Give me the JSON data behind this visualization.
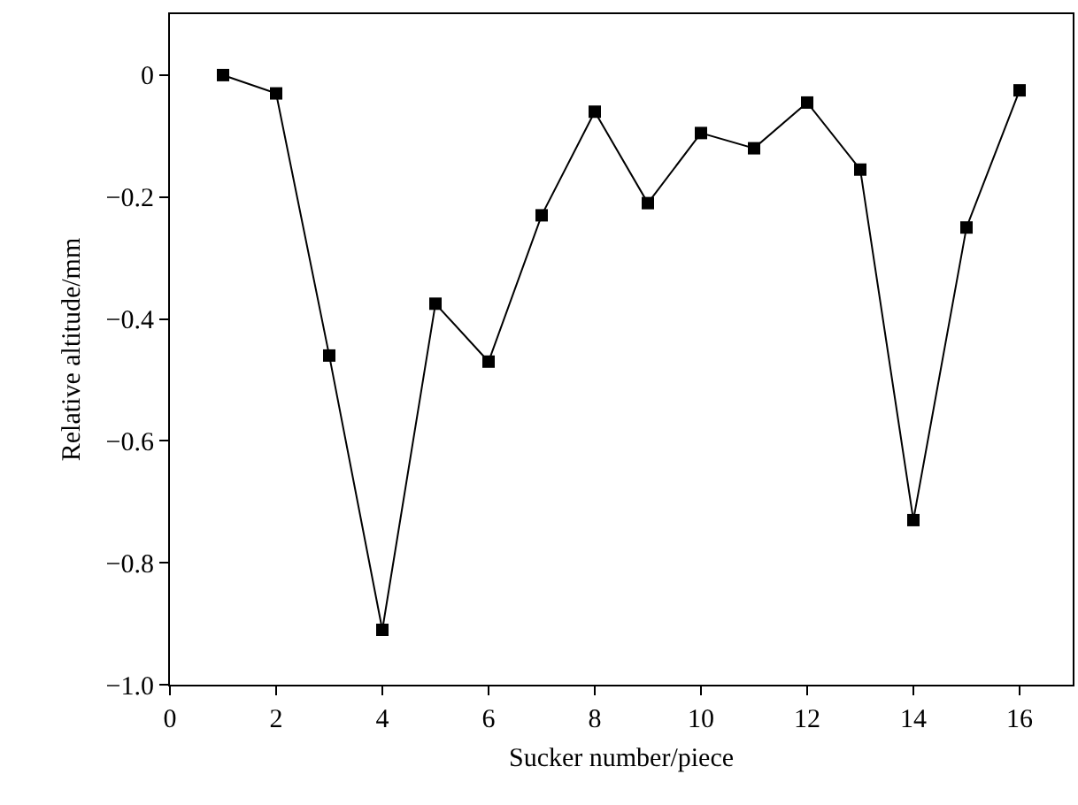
{
  "chart_data": {
    "type": "line",
    "xlabel": "Sucker number/piece",
    "ylabel": "Relative altitude/mm",
    "x": [
      1,
      2,
      3,
      4,
      5,
      6,
      7,
      8,
      9,
      10,
      11,
      12,
      13,
      14,
      15,
      16
    ],
    "series": [
      {
        "color": "#000000",
        "values": [
          0,
          -0.03,
          -0.46,
          -0.91,
          -0.375,
          -0.47,
          -0.23,
          -0.06,
          -0.21,
          -0.095,
          -0.12,
          -0.045,
          -0.155,
          -0.73,
          -0.25,
          -0.025
        ]
      }
    ],
    "xlim": [
      0,
      17
    ],
    "xticks": [
      0,
      2,
      4,
      6,
      8,
      10,
      12,
      14,
      16
    ],
    "ylim": [
      -1.0,
      0.1
    ],
    "yticks": [
      {
        "value": -1.0,
        "label": "−1.0"
      },
      {
        "value": -0.8,
        "label": "−0.8"
      },
      {
        "value": -0.6,
        "label": "−0.6"
      },
      {
        "value": -0.4,
        "label": "−0.4"
      },
      {
        "value": -0.2,
        "label": "−0.2"
      },
      0
    ],
    "grid": false,
    "marker": "square",
    "line_style": "solid"
  }
}
